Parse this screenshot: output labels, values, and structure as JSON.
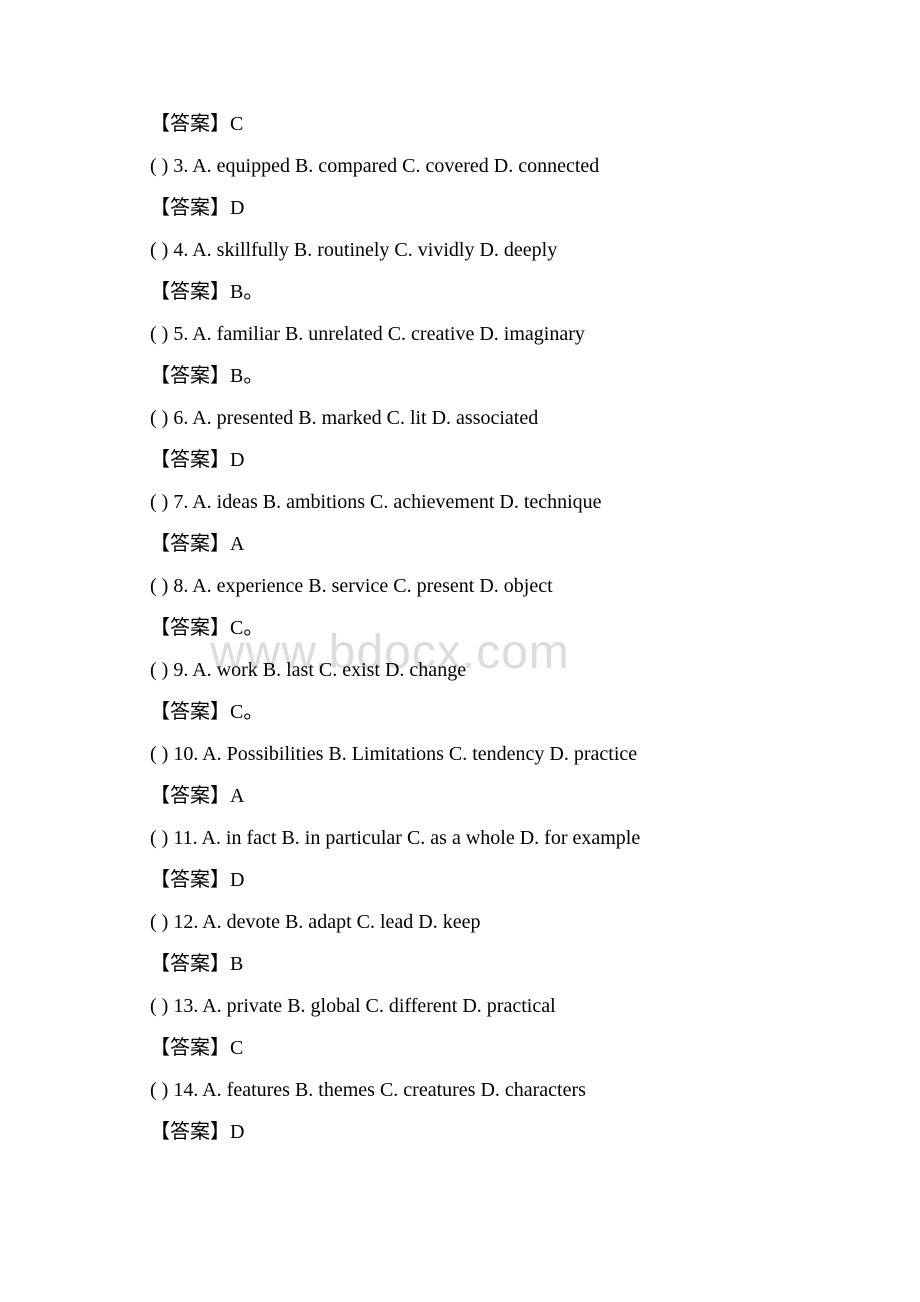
{
  "watermark": "www.bdocx.com",
  "answer_label": "【答案】",
  "period": "。",
  "items": [
    {
      "answer_only": true,
      "answer": "C"
    },
    {
      "num": "3",
      "options": "A. equipped B. compared C. covered D. connected",
      "answer": "D"
    },
    {
      "num": "4",
      "options": "A. skillfully B. routinely C. vividly D. deeply",
      "answer": "B",
      "answer_period": true
    },
    {
      "num": "5",
      "options": "A. familiar B. unrelated C. creative D. imaginary",
      "answer": "B",
      "answer_period": true
    },
    {
      "num": "6",
      "options": "A. presented B. marked C. lit D. associated",
      "answer": "D"
    },
    {
      "num": "7",
      "options": "A. ideas B. ambitions C. achievement  D. technique",
      "answer": "A"
    },
    {
      "num": "8",
      "options": "A. experience B. service C. present D. object",
      "answer": "C",
      "answer_period": true
    },
    {
      "num": "9",
      "options": "A. work B. last C. exist D. change",
      "answer": "C",
      "answer_period": true
    },
    {
      "num": "10",
      "options": "A. Possibilities B. Limitations C. tendency D. practice",
      "answer": "A"
    },
    {
      "num": "11",
      "options": "A. in fact B. in particular C. as a whole D. for example",
      "answer": "D"
    },
    {
      "num": "12",
      "options": "A. devote B. adapt C. lead D. keep",
      "answer": "B"
    },
    {
      "num": "13",
      "options": "A. private B. global C. different D. practical",
      "answer": "C"
    },
    {
      "num": "14",
      "options": "A. features B. themes C. creatures D. characters",
      "answer": "D"
    }
  ]
}
